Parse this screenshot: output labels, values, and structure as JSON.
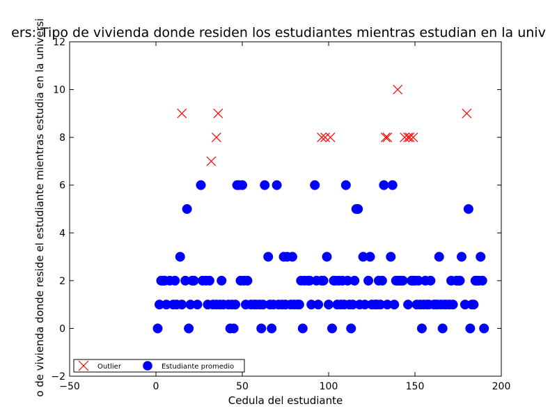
{
  "chart_data": {
    "type": "scatter",
    "title": "ers: Tipo de vivienda donde residen los estudiantes mientras estudian en la univ",
    "xlabel": "Cedula del estudiante",
    "ylabel": "o de vivienda donde reside el estudiante mientras estudia en la universi",
    "xlim": [
      -50,
      200
    ],
    "ylim": [
      -2,
      12
    ],
    "xticks": [
      -50,
      0,
      50,
      100,
      150,
      200
    ],
    "yticks": [
      -2,
      0,
      2,
      4,
      6,
      8,
      10,
      12
    ],
    "grid": false,
    "legend_position": "lower-left",
    "series": [
      {
        "name": "Outlier",
        "marker": "x",
        "color": "#ff0000",
        "points": [
          [
            15,
            9
          ],
          [
            32,
            7
          ],
          [
            35,
            8
          ],
          [
            36,
            9
          ],
          [
            96,
            8
          ],
          [
            98,
            8
          ],
          [
            101,
            8
          ],
          [
            133,
            8
          ],
          [
            134,
            8
          ],
          [
            140,
            10
          ],
          [
            144,
            8
          ],
          [
            146,
            8
          ],
          [
            147,
            8
          ],
          [
            149,
            8
          ],
          [
            180,
            9
          ]
        ]
      },
      {
        "name": "Estudiante promedio",
        "marker": "o",
        "color": "#0000ff",
        "points": [
          [
            1,
            0
          ],
          [
            2,
            1
          ],
          [
            3,
            2
          ],
          [
            4,
            2
          ],
          [
            5,
            2
          ],
          [
            6,
            1
          ],
          [
            8,
            2
          ],
          [
            10,
            1
          ],
          [
            11,
            2
          ],
          [
            12,
            1
          ],
          [
            14,
            3
          ],
          [
            15,
            1
          ],
          [
            17,
            2
          ],
          [
            18,
            5
          ],
          [
            19,
            0
          ],
          [
            20,
            1
          ],
          [
            21,
            2
          ],
          [
            22,
            2
          ],
          [
            24,
            1
          ],
          [
            26,
            6
          ],
          [
            27,
            2
          ],
          [
            29,
            2
          ],
          [
            30,
            1
          ],
          [
            31,
            2
          ],
          [
            33,
            1
          ],
          [
            35,
            1
          ],
          [
            37,
            1
          ],
          [
            38,
            2
          ],
          [
            39,
            1
          ],
          [
            42,
            1
          ],
          [
            43,
            0
          ],
          [
            44,
            1
          ],
          [
            45,
            0
          ],
          [
            46,
            1
          ],
          [
            47,
            6
          ],
          [
            48,
            6
          ],
          [
            49,
            2
          ],
          [
            50,
            6
          ],
          [
            51,
            2
          ],
          [
            52,
            1
          ],
          [
            53,
            2
          ],
          [
            55,
            1
          ],
          [
            57,
            1
          ],
          [
            58,
            1
          ],
          [
            60,
            1
          ],
          [
            61,
            0
          ],
          [
            62,
            1
          ],
          [
            63,
            6
          ],
          [
            65,
            3
          ],
          [
            66,
            1
          ],
          [
            67,
            0
          ],
          [
            68,
            1
          ],
          [
            70,
            6
          ],
          [
            71,
            1
          ],
          [
            73,
            1
          ],
          [
            74,
            3
          ],
          [
            75,
            1
          ],
          [
            76,
            3
          ],
          [
            78,
            1
          ],
          [
            79,
            3
          ],
          [
            80,
            1
          ],
          [
            82,
            1
          ],
          [
            83,
            1
          ],
          [
            84,
            2
          ],
          [
            85,
            0
          ],
          [
            86,
            2
          ],
          [
            88,
            2
          ],
          [
            89,
            2
          ],
          [
            90,
            1
          ],
          [
            92,
            6
          ],
          [
            93,
            2
          ],
          [
            94,
            1
          ],
          [
            96,
            2
          ],
          [
            97,
            2
          ],
          [
            99,
            3
          ],
          [
            100,
            1
          ],
          [
            102,
            0
          ],
          [
            103,
            2
          ],
          [
            104,
            2
          ],
          [
            105,
            1
          ],
          [
            106,
            2
          ],
          [
            107,
            1
          ],
          [
            108,
            2
          ],
          [
            109,
            1
          ],
          [
            110,
            6
          ],
          [
            111,
            2
          ],
          [
            112,
            1
          ],
          [
            113,
            0
          ],
          [
            114,
            1
          ],
          [
            115,
            2
          ],
          [
            116,
            5
          ],
          [
            117,
            5
          ],
          [
            118,
            1
          ],
          [
            120,
            3
          ],
          [
            121,
            1
          ],
          [
            123,
            2
          ],
          [
            124,
            3
          ],
          [
            125,
            1
          ],
          [
            127,
            1
          ],
          [
            128,
            1
          ],
          [
            129,
            2
          ],
          [
            130,
            1
          ],
          [
            131,
            2
          ],
          [
            132,
            6
          ],
          [
            134,
            1
          ],
          [
            136,
            3
          ],
          [
            137,
            6
          ],
          [
            138,
            1
          ],
          [
            139,
            2
          ],
          [
            140,
            2
          ],
          [
            141,
            2
          ],
          [
            142,
            2
          ],
          [
            143,
            2
          ],
          [
            146,
            1
          ],
          [
            148,
            2
          ],
          [
            149,
            2
          ],
          [
            150,
            2
          ],
          [
            151,
            1
          ],
          [
            152,
            2
          ],
          [
            153,
            1
          ],
          [
            154,
            0
          ],
          [
            155,
            1
          ],
          [
            156,
            2
          ],
          [
            157,
            1
          ],
          [
            158,
            1
          ],
          [
            159,
            2
          ],
          [
            161,
            1
          ],
          [
            162,
            1
          ],
          [
            163,
            1
          ],
          [
            164,
            3
          ],
          [
            165,
            1
          ],
          [
            166,
            0
          ],
          [
            167,
            1
          ],
          [
            168,
            1
          ],
          [
            170,
            1
          ],
          [
            171,
            2
          ],
          [
            172,
            1
          ],
          [
            174,
            2
          ],
          [
            175,
            2
          ],
          [
            176,
            2
          ],
          [
            177,
            3
          ],
          [
            179,
            1
          ],
          [
            181,
            5
          ],
          [
            182,
            0
          ],
          [
            183,
            1
          ],
          [
            184,
            1
          ],
          [
            185,
            2
          ],
          [
            186,
            2
          ],
          [
            187,
            2
          ],
          [
            188,
            3
          ],
          [
            189,
            2
          ],
          [
            190,
            0
          ]
        ]
      }
    ]
  }
}
